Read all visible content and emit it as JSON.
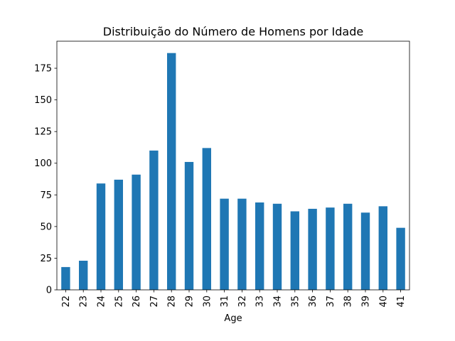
{
  "chart_data": {
    "type": "bar",
    "title": "Distribuição do Número de Homens por Idade",
    "xlabel": "Age",
    "ylabel": "",
    "categories": [
      "22",
      "23",
      "24",
      "25",
      "26",
      "27",
      "28",
      "29",
      "30",
      "31",
      "32",
      "33",
      "34",
      "35",
      "36",
      "37",
      "38",
      "39",
      "40",
      "41"
    ],
    "values": [
      18,
      23,
      84,
      87,
      91,
      110,
      187,
      101,
      112,
      72,
      72,
      69,
      68,
      62,
      64,
      65,
      68,
      61,
      66,
      49
    ],
    "ylim": [
      0,
      196.35
    ],
    "yticks": [
      0,
      25,
      50,
      75,
      100,
      125,
      150,
      175
    ],
    "bar_color": "#1f77b4",
    "grid": false,
    "legend": false
  }
}
